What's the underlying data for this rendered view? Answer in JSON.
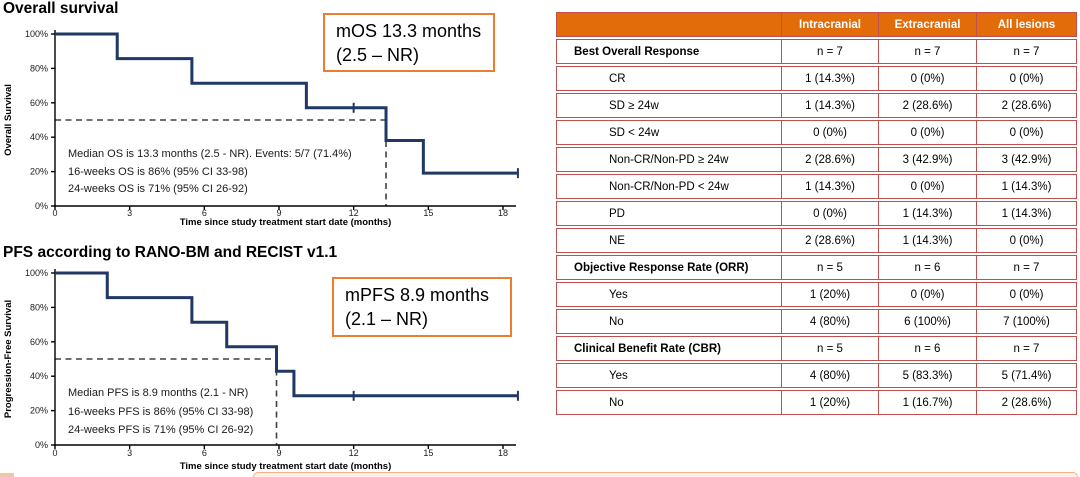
{
  "colors": {
    "km_line": "#1f3864",
    "dashed_line": "#404040",
    "callout_border": "#ed7d31",
    "table_header_bg": "#e36c0a",
    "table_border": "#c0504d",
    "header_text": "#ffffff"
  },
  "chart_data": [
    {
      "type": "line",
      "subtype": "kaplan-meier-step",
      "title": "Overall survival",
      "xlabel": "Time since study treatment start date (months)",
      "ylabel": "Overall Survival",
      "xlim": [
        0,
        18.8
      ],
      "ylim": [
        0,
        100
      ],
      "xticks": [
        0,
        3,
        6,
        9,
        12,
        15,
        18
      ],
      "ytick_values": [
        0,
        20,
        40,
        60,
        80,
        100
      ],
      "ytick_labels": [
        "0%",
        "20%",
        "40%",
        "60%",
        "80%",
        "100%"
      ],
      "grid": false,
      "legend": "none",
      "line_color": "#1f3864",
      "step_x": [
        0,
        2.5,
        5.5,
        10.1,
        13.3,
        14.8,
        18.6
      ],
      "step_levels": [
        100,
        85.7,
        71.4,
        57.1,
        38.1,
        19.1
      ],
      "censor_marks": [
        [
          12.0,
          57.1
        ],
        [
          18.6,
          19.1
        ]
      ],
      "median_months": 13.3,
      "median_line_pct": 50,
      "annotations": [
        "Median OS is 13.3 months (2.5 - NR). Events: 5/7 (71.4%)",
        "16-weeks OS is 86% (95% CI 33-98)",
        "24-weeks OS is 71% (95% CI 26-92)"
      ],
      "callout": [
        "mOS 13.3 months",
        "(2.5 – NR)"
      ]
    },
    {
      "type": "line",
      "subtype": "kaplan-meier-step",
      "title": "PFS according to RANO-BM and RECIST v1.1",
      "xlabel": "Time since study treatment start date (months)",
      "ylabel": "Progression-Free Survival",
      "xlim": [
        0,
        18.8
      ],
      "ylim": [
        0,
        100
      ],
      "xticks": [
        0,
        3,
        6,
        9,
        12,
        15,
        18
      ],
      "ytick_values": [
        0,
        20,
        40,
        60,
        80,
        100
      ],
      "ytick_labels": [
        "0%",
        "20%",
        "40%",
        "60%",
        "80%",
        "100%"
      ],
      "grid": false,
      "legend": "none",
      "line_color": "#1f3864",
      "step_x": [
        0,
        2.1,
        5.5,
        6.9,
        8.9,
        9.6,
        18.6
      ],
      "step_levels": [
        100,
        85.7,
        71.4,
        57.1,
        42.9,
        28.6
      ],
      "censor_marks": [
        [
          12.0,
          28.6
        ],
        [
          18.6,
          28.6
        ]
      ],
      "median_months": 8.9,
      "median_line_pct": 50,
      "annotations": [
        "Median PFS is 8.9 months (2.1 - NR)",
        "16-weeks PFS is 86% (95% CI 33-98)",
        "24-weeks PFS is 71% (95% CI 26-92)"
      ],
      "callout": [
        "mPFS 8.9 months",
        "(2.1 – NR)"
      ]
    },
    {
      "type": "table",
      "columns": [
        "",
        "Intracranial",
        "Extracranial",
        "All lesions"
      ],
      "rows": [
        {
          "style": "section",
          "label": "Best Overall Response",
          "values": [
            "n = 7",
            "n = 7",
            "n = 7"
          ]
        },
        {
          "style": "item",
          "label": "CR",
          "values": [
            "1 (14.3%)",
            "0 (0%)",
            "0 (0%)"
          ]
        },
        {
          "style": "item",
          "label": "SD ≥ 24w",
          "values": [
            "1 (14.3%)",
            "2 (28.6%)",
            "2 (28.6%)"
          ]
        },
        {
          "style": "item",
          "label": "SD < 24w",
          "values": [
            "0 (0%)",
            "0 (0%)",
            "0 (0%)"
          ]
        },
        {
          "style": "item",
          "label": "Non-CR/Non-PD ≥ 24w",
          "values": [
            "2 (28.6%)",
            "3 (42.9%)",
            "3 (42.9%)"
          ]
        },
        {
          "style": "item",
          "label": "Non-CR/Non-PD < 24w",
          "values": [
            "1 (14.3%)",
            "0 (0%)",
            "1 (14.3%)"
          ]
        },
        {
          "style": "item",
          "label": "PD",
          "values": [
            "0 (0%)",
            "1 (14.3%)",
            "1 (14.3%)"
          ]
        },
        {
          "style": "item",
          "label": "NE",
          "values": [
            "2 (28.6%)",
            "1 (14.3%)",
            "0 (0%)"
          ]
        },
        {
          "style": "section",
          "label": "Objective Response Rate (ORR)",
          "values": [
            "n = 5",
            "n = 6",
            "n = 7"
          ]
        },
        {
          "style": "item",
          "label": "Yes",
          "values": [
            "1 (20%)",
            "0 (0%)",
            "0 (0%)"
          ]
        },
        {
          "style": "item",
          "label": "No",
          "values": [
            "4 (80%)",
            "6 (100%)",
            "7 (100%)"
          ]
        },
        {
          "style": "section",
          "label": "Clinical Benefit Rate (CBR)",
          "values": [
            "n = 5",
            "n = 6",
            "n = 7"
          ]
        },
        {
          "style": "item",
          "label": "Yes",
          "values": [
            "4 (80%)",
            "5 (83.3%)",
            "5 (71.4%)"
          ]
        },
        {
          "style": "item",
          "label": "No",
          "values": [
            "1 (20%)",
            "1 (16.7%)",
            "2 (28.6%)"
          ]
        }
      ]
    }
  ]
}
